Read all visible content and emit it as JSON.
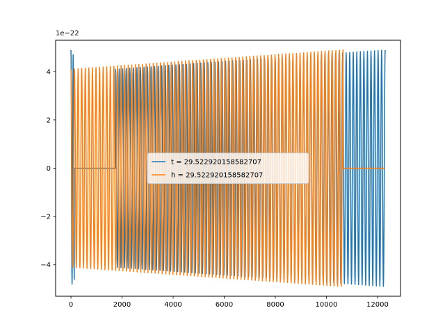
{
  "chart_data": {
    "type": "line",
    "title": "",
    "xlabel": "",
    "ylabel": "",
    "xlim": [
      -600,
      12900
    ],
    "ylim": [
      -5.3,
      5.3
    ],
    "y_exponent_label": "1e−22",
    "x_ticks": [
      0,
      2000,
      4000,
      6000,
      8000,
      10000,
      12000
    ],
    "x_tick_labels": [
      "0",
      "2000",
      "4000",
      "6000",
      "8000",
      "10000",
      "12000"
    ],
    "y_ticks": [
      -4,
      -2,
      0,
      2,
      4
    ],
    "y_tick_labels": [
      "−4",
      "−2",
      "0",
      "2",
      "4"
    ],
    "grid": false,
    "legend_position": "center",
    "series": [
      {
        "name": "t = 29.522920158582707",
        "color": "#1f77b4",
        "segments": [
          {
            "kind": "burst",
            "x_start": 0,
            "x_end": 130,
            "cycles": 1.5,
            "amp_start": 4.9,
            "amp_end": 4.6
          },
          {
            "kind": "flat",
            "x_start": 130,
            "x_end": 1750,
            "value": 0
          },
          {
            "kind": "oscillation",
            "x_start": 1750,
            "x_end": 12300,
            "cycles": 76,
            "amp_start": 4.1,
            "amp_end": 4.9
          }
        ]
      },
      {
        "name": "h = 29.522920158582707",
        "color": "#ff7f0e",
        "segments": [
          {
            "kind": "oscillation",
            "x_start": 0,
            "x_end": 10650,
            "cycles": 76,
            "amp_start": 4.1,
            "amp_end": 4.9
          },
          {
            "kind": "flat",
            "x_start": 10650,
            "x_end": 12300,
            "value": 0
          }
        ]
      }
    ]
  }
}
